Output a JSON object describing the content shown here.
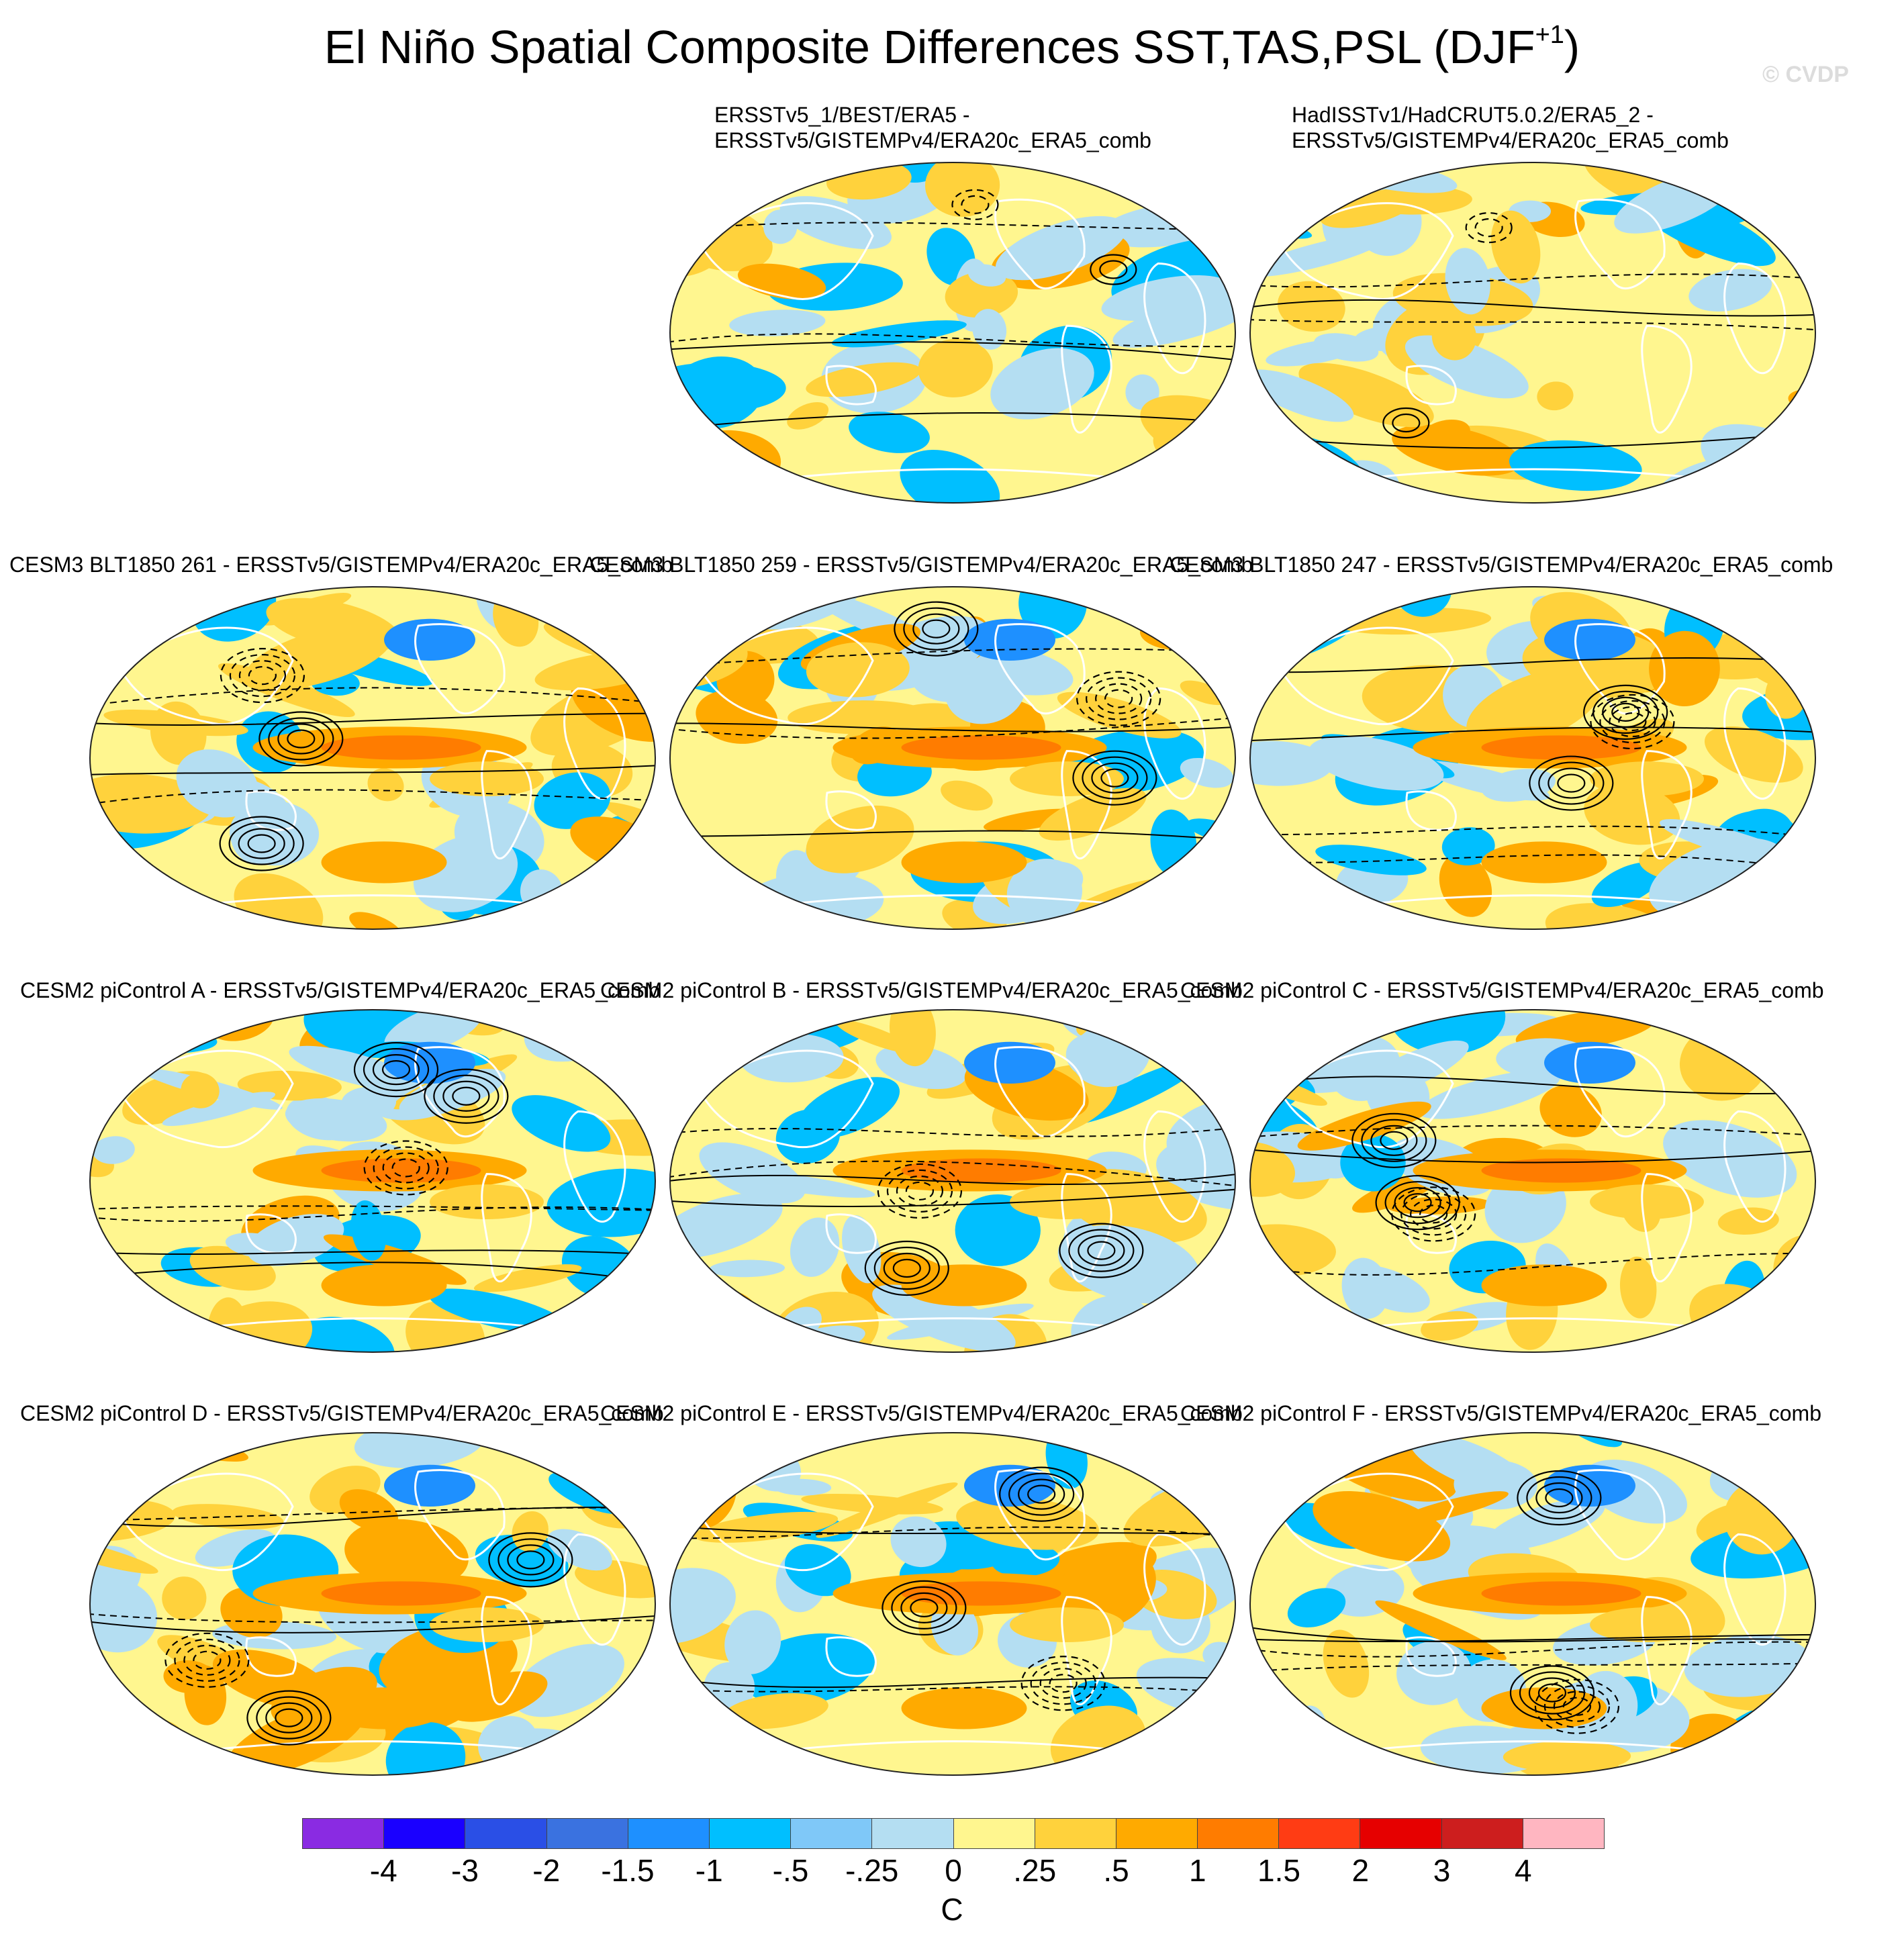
{
  "figure": {
    "title": "El Niño Spatial Composite Differences SST,TAS,PSL (DJF",
    "title_superscript": "+1",
    "title_close": ")",
    "watermark": "© CVDP"
  },
  "panels": [
    {
      "title": "ERSSTv5_1/BEST/ERA5 -\nERSSTv5/GISTEMPv4/ERA20c_ERA5_comb",
      "pattern": "obs"
    },
    {
      "title": "HadISSTv1/HadCRUT5.0.2/ERA5_2 -\nERSSTv5/GISTEMPv4/ERA20c_ERA5_comb",
      "pattern": "obs"
    },
    {
      "title": "CESM3 BLT1850 261 - ERSSTv5/GISTEMPv4/ERA20c_ERA5_comb",
      "pattern": "model"
    },
    {
      "title": "CESM3 BLT1850 259 - ERSSTv5/GISTEMPv4/ERA20c_ERA5_comb",
      "pattern": "model"
    },
    {
      "title": "CESM3 BLT1850 247 - ERSSTv5/GISTEMPv4/ERA20c_ERA5_comb",
      "pattern": "model"
    },
    {
      "title": "CESM2 piControl A - ERSSTv5/GISTEMPv4/ERA20c_ERA5_comb",
      "pattern": "model"
    },
    {
      "title": "CESM2 piControl B - ERSSTv5/GISTEMPv4/ERA20c_ERA5_comb",
      "pattern": "model"
    },
    {
      "title": "CESM2 piControl C - ERSSTv5/GISTEMPv4/ERA20c_ERA5_comb",
      "pattern": "model"
    },
    {
      "title": "CESM2 piControl D - ERSSTv5/GISTEMPv4/ERA20c_ERA5_comb",
      "pattern": "model"
    },
    {
      "title": "CESM2 piControl E - ERSSTv5/GISTEMPv4/ERA20c_ERA5_comb",
      "pattern": "model"
    },
    {
      "title": "CESM2 piControl F - ERSSTv5/GISTEMPv4/ERA20c_ERA5_comb",
      "pattern": "model"
    }
  ],
  "colorbar": {
    "unit": "C",
    "tick_labels": [
      "-4",
      "-3",
      "-2",
      "-1.5",
      "-1",
      "-.5",
      "-.25",
      "0",
      ".25",
      ".5",
      "1",
      "1.5",
      "2",
      "3",
      "4"
    ],
    "colors": [
      "#8a2be2",
      "#1a00ff",
      "#2a4fe6",
      "#3a72e0",
      "#1e90ff",
      "#00bfff",
      "#7fc8f8",
      "#b4def2",
      "#fff68f",
      "#ffd23c",
      "#ffaa00",
      "#ff7c00",
      "#ff3c14",
      "#e60000",
      "#cd1e1e",
      "#ffb6c1"
    ]
  }
}
